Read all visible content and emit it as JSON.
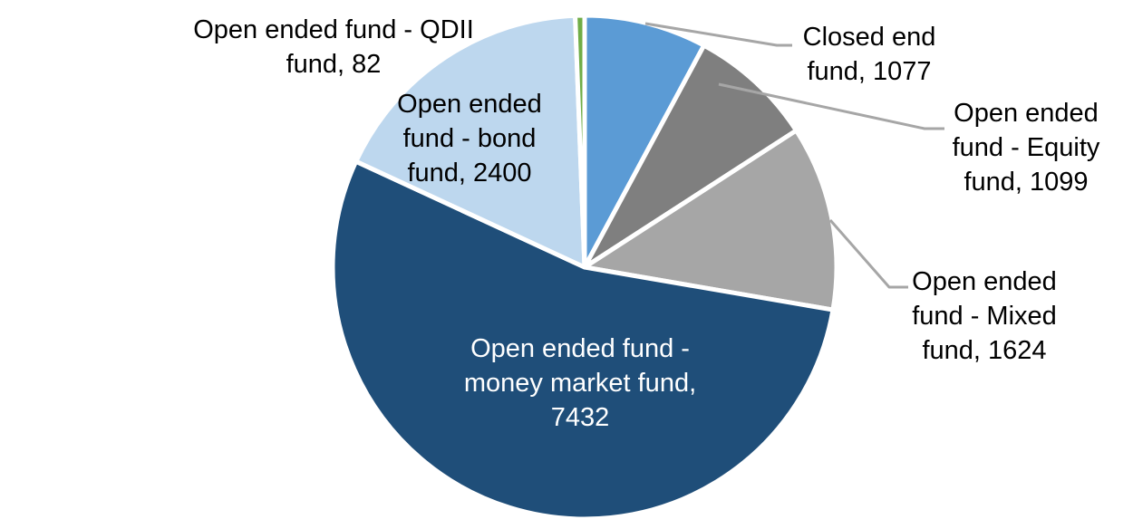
{
  "chart_data": {
    "type": "pie",
    "title": "",
    "total": 13714,
    "start_angle_deg": 0,
    "direction": "clockwise",
    "legend_position": "none",
    "slices": [
      {
        "id": "closed_end",
        "label": "Closed end fund",
        "value": 1077,
        "color": "#5B9BD5",
        "label_placement": "outside"
      },
      {
        "id": "equity",
        "label": "Open ended fund - Equity fund",
        "value": 1099,
        "color": "#7F7F7F",
        "label_placement": "outside"
      },
      {
        "id": "mixed",
        "label": "Open ended fund - Mixed fund",
        "value": 1624,
        "color": "#A6A6A6",
        "label_placement": "outside"
      },
      {
        "id": "money_market",
        "label": "Open ended fund - money market fund",
        "value": 7432,
        "color": "#1F4E79",
        "label_placement": "inside"
      },
      {
        "id": "bond",
        "label": "Open ended fund - bond fund",
        "value": 2400,
        "color": "#BDD7EE",
        "label_placement": "inside"
      },
      {
        "id": "qdii",
        "label": "Open ended fund - QDII fund",
        "value": 82,
        "color": "#70AD47",
        "label_placement": "outside"
      }
    ],
    "style": {
      "slice_border_color": "#FFFFFF",
      "leader_line_color": "#A6A6A6",
      "outside_label_color": "#000000",
      "inside_label_color": "#FFFFFF"
    }
  },
  "callouts": {
    "closed_end": {
      "text": "Closed end fund, 1077"
    },
    "equity": {
      "text": "Open ended fund - Equity fund, 1099"
    },
    "mixed": {
      "text": "Open ended fund - Mixed fund, 1624"
    },
    "money_market": {
      "text": "Open ended fund - money market fund, 7432"
    },
    "bond": {
      "text": "Open ended fund - bond fund, 2400"
    },
    "qdii": {
      "text": "Open ended fund - QDII fund, 82"
    }
  }
}
